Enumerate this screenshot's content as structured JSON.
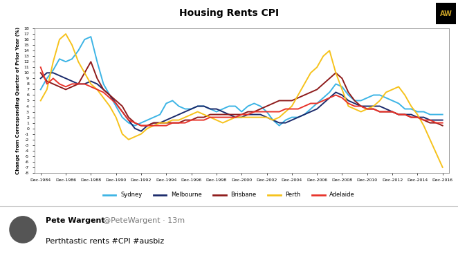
{
  "chart_data": {
    "type": "line",
    "title": "Housing Rents CPI",
    "y_label": "Change from Corresponding Quarter of Prior Year (%)",
    "categories": [
      "Dec-1984",
      null,
      null,
      null,
      "Dec-1986",
      null,
      null,
      null,
      "Dec-1988",
      null,
      null,
      null,
      "Dec-1990",
      null,
      null,
      null,
      "Dec-1992",
      null,
      null,
      null,
      "Dec-1994",
      null,
      null,
      null,
      "Dec-1996",
      null,
      null,
      null,
      "Dec-1998",
      null,
      null,
      null,
      "Dec-2000",
      null,
      null,
      null,
      "Dec-2002",
      null,
      null,
      null,
      "Dec-2004",
      null,
      null,
      null,
      "Dec-2006",
      null,
      null,
      null,
      "Dec-2008",
      null,
      null,
      null,
      "Dec-2010",
      null,
      null,
      null,
      "Dec-2012",
      null,
      null,
      null,
      "Dec-2014",
      null,
      null,
      null,
      "Dec-2016"
    ],
    "series": [
      {
        "name": "Sydney",
        "color": "#3cb4e5",
        "values": [
          7,
          9,
          10.5,
          12.5,
          12,
          12.5,
          14,
          16,
          16.5,
          12,
          8,
          6,
          4,
          2,
          1,
          0.5,
          1,
          1.5,
          2,
          2.5,
          4.5,
          5,
          4,
          3.5,
          3.5,
          4,
          4,
          3.5,
          3,
          3.5,
          4,
          4,
          3,
          4,
          4.5,
          4,
          3,
          1.5,
          0.5,
          1.5,
          2,
          2,
          2.5,
          3.5,
          4.5,
          5.5,
          6.5,
          8,
          7.5,
          6,
          5,
          5,
          5.5,
          6,
          6,
          5.5,
          5,
          4.5,
          3.5,
          3.5,
          3,
          3,
          2.5,
          2.5,
          2.5
        ]
      },
      {
        "name": "Melbourne",
        "color": "#1b2a6b",
        "values": [
          9,
          10,
          10,
          9.5,
          9,
          8.5,
          8,
          8,
          8.5,
          8,
          7,
          6,
          4.5,
          3,
          1.5,
          0,
          -0.5,
          0.5,
          1,
          1,
          1.5,
          2,
          2.5,
          3,
          3.5,
          4,
          4,
          3.5,
          3.5,
          3,
          2.5,
          2,
          2,
          2.5,
          2.5,
          2.5,
          2,
          1.5,
          1,
          1,
          1.5,
          2,
          2.5,
          3,
          3.5,
          4.5,
          5.5,
          6.5,
          6,
          5,
          4.5,
          4,
          4,
          4,
          4,
          3.5,
          3,
          2.5,
          2.5,
          2.5,
          2,
          2,
          1.5,
          1.5,
          1.5
        ]
      },
      {
        "name": "Brisbane",
        "color": "#8e1b1b",
        "values": [
          10,
          8.5,
          8,
          7.5,
          7,
          7.5,
          8,
          10,
          12,
          9,
          7,
          6,
          5,
          4,
          2,
          1,
          0.5,
          0.5,
          1,
          1,
          1,
          1,
          1,
          1.5,
          1.5,
          2,
          2,
          2.5,
          2.5,
          2.5,
          2.5,
          2.5,
          2.5,
          3,
          3,
          3.5,
          4,
          4.5,
          5,
          5,
          5,
          5.5,
          6,
          6.5,
          7,
          8,
          9,
          10,
          9,
          6.5,
          5,
          4,
          3.5,
          3.5,
          3,
          3,
          3,
          2.5,
          2.5,
          2,
          2,
          1.5,
          1,
          1,
          0.5
        ]
      },
      {
        "name": "Perth",
        "color": "#f6c21b",
        "values": [
          5,
          7,
          12,
          16,
          17,
          15,
          12,
          10,
          8,
          7,
          5.5,
          4,
          2,
          -1,
          -2,
          -1.5,
          -1,
          0,
          0.5,
          1,
          1,
          1.5,
          1.5,
          2,
          2.5,
          3,
          2.5,
          2,
          1.5,
          1,
          1.5,
          2,
          2,
          2,
          2,
          2,
          2,
          1.5,
          2,
          3,
          4,
          6,
          8,
          10,
          11,
          13,
          14,
          10,
          7,
          4,
          3.5,
          3,
          3.5,
          4,
          5,
          6.5,
          7,
          7.5,
          6,
          4,
          2.5,
          0.5,
          -2,
          -4.5,
          -7
        ]
      },
      {
        "name": "Adelaide",
        "color": "#e8332a",
        "values": [
          11,
          8,
          9,
          8,
          7.5,
          8,
          8,
          8,
          7.5,
          7,
          6.5,
          5.5,
          4.5,
          3,
          1.5,
          1,
          0.5,
          0.5,
          0.5,
          0.5,
          0.5,
          1,
          1,
          1,
          1.5,
          1.5,
          1.5,
          2,
          2,
          2,
          2,
          2,
          2.5,
          2.5,
          3,
          3,
          3,
          3,
          3,
          3.5,
          3.5,
          3.5,
          4,
          4.5,
          4.5,
          5,
          5.5,
          6,
          5.5,
          4.5,
          4,
          4,
          3.5,
          3.5,
          3,
          3,
          3,
          2.5,
          2.5,
          2,
          2,
          1.5,
          1.5,
          1,
          1
        ]
      }
    ],
    "ylim": [
      -8,
      18
    ],
    "yticks": [
      -8,
      -7,
      -6,
      -5,
      -4,
      -3,
      -2,
      -1,
      0,
      1,
      2,
      3,
      4,
      5,
      6,
      7,
      8,
      9,
      10,
      11,
      12,
      13,
      14,
      15,
      16,
      17,
      18
    ],
    "grid": false,
    "legend": "lower center"
  },
  "logo": "AW",
  "tweet": {
    "name": "Pete Wargent",
    "handle": "@PeteWargent · 13m",
    "text": "Perthtastic rents #CPI #ausbiz"
  }
}
